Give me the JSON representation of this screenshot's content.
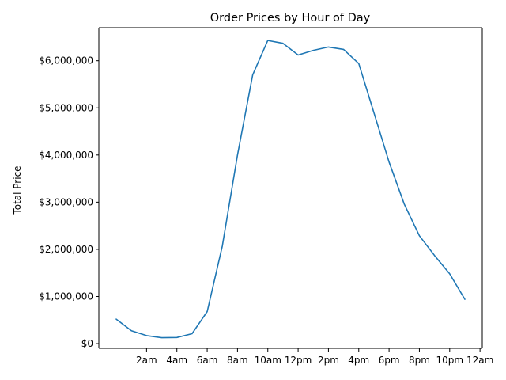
{
  "chart_data": {
    "type": "line",
    "title": "Order Prices by Hour of Day",
    "xlabel": "",
    "ylabel": "Total Price",
    "x": [
      0,
      1,
      2,
      3,
      4,
      5,
      6,
      7,
      8,
      9,
      10,
      11,
      12,
      13,
      14,
      15,
      16,
      17,
      18,
      19,
      20,
      21,
      22,
      23
    ],
    "x_ticks": [
      2,
      4,
      6,
      8,
      10,
      12,
      14,
      16,
      18,
      20,
      22,
      24
    ],
    "x_tick_labels": [
      "2am",
      "4am",
      "6am",
      "8am",
      "10am",
      "12pm",
      "2pm",
      "4pm",
      "6pm",
      "8pm",
      "10pm",
      "12am"
    ],
    "xlim": [
      -1.15,
      24.15
    ],
    "y_ticks": [
      0,
      1000000,
      2000000,
      3000000,
      4000000,
      5000000,
      6000000
    ],
    "y_tick_labels": [
      "$0",
      "$1,000,000",
      "$2,000,000",
      "$3,000,000",
      "$4,000,000",
      "$5,000,000",
      "$6,000,000"
    ],
    "ylim": [
      -100000,
      6700000
    ],
    "series": [
      {
        "color": "#1f77b4",
        "values": [
          520000,
          275000,
          170000,
          125000,
          130000,
          210000,
          680000,
          2070000,
          4000000,
          5700000,
          6430000,
          6370000,
          6120000,
          6220000,
          6290000,
          6240000,
          5940000,
          4900000,
          3850000,
          2960000,
          2290000,
          1870000,
          1480000,
          940000
        ]
      }
    ],
    "grid": false,
    "legend": "none"
  }
}
